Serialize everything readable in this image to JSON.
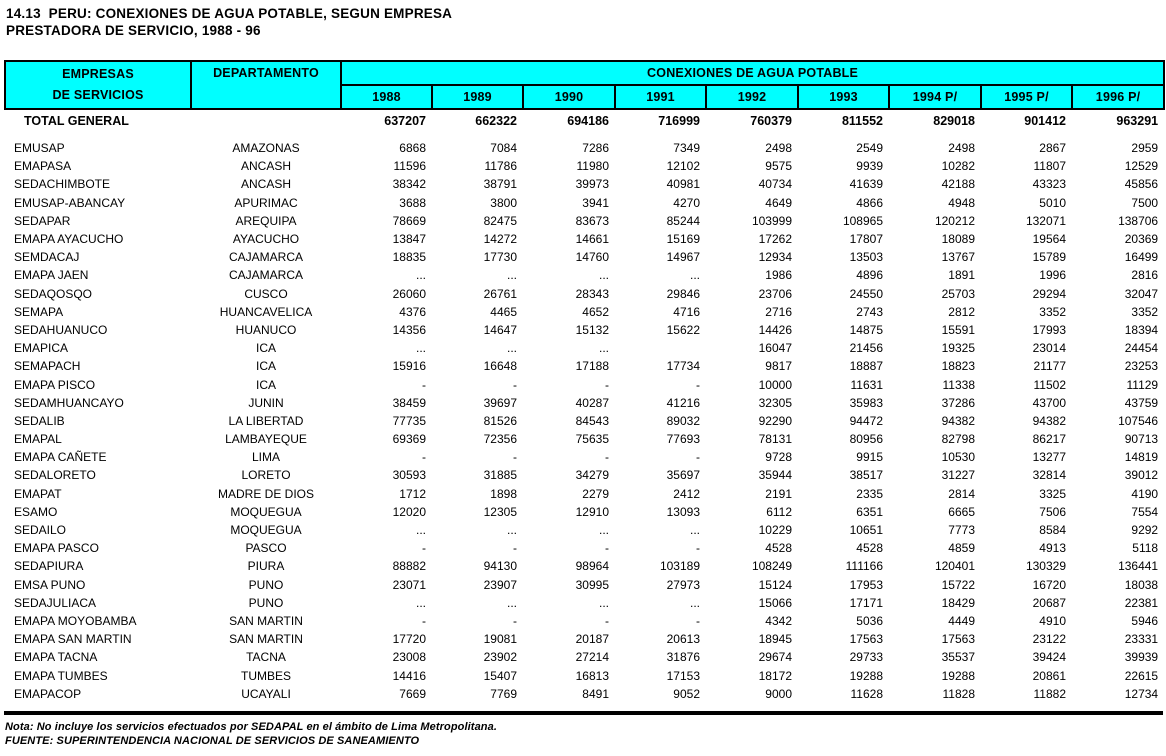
{
  "title": {
    "line1": "14.13  PERU: CONEXIONES DE AGUA POTABLE, SEGUN EMPRESA",
    "line2": "PRESTADORA DE SERVICIO, 1988 - 96"
  },
  "colors": {
    "header_bg": "#00FFFF",
    "border": "#000000",
    "text": "#000000",
    "page_bg": "#FFFFFF"
  },
  "table": {
    "header": {
      "col1_line1": "EMPRESAS",
      "col1_line2": "DE SERVICIOS",
      "col2": "DEPARTAMENTO",
      "group": "CONEXIONES DE AGUA POTABLE",
      "years": [
        "1988",
        "1989",
        "1990",
        "1991",
        "1992",
        "1993",
        "1994 P/",
        "1995 P/",
        "1996 P/"
      ]
    },
    "total": {
      "label": "TOTAL GENERAL",
      "values": [
        "637207",
        "662322",
        "694186",
        "716999",
        "760379",
        "811552",
        "829018",
        "901412",
        "963291"
      ]
    },
    "rows": [
      {
        "company": "EMUSAP",
        "department": "AMAZONAS",
        "values": [
          "6868",
          "7084",
          "7286",
          "7349",
          "2498",
          "2549",
          "2498",
          "2867",
          "2959"
        ]
      },
      {
        "company": "EMAPASA",
        "department": "ANCASH",
        "values": [
          "11596",
          "11786",
          "11980",
          "12102",
          "9575",
          "9939",
          "10282",
          "11807",
          "12529"
        ]
      },
      {
        "company": "SEDACHIMBOTE",
        "department": "ANCASH",
        "values": [
          "38342",
          "38791",
          "39973",
          "40981",
          "40734",
          "41639",
          "42188",
          "43323",
          "45856"
        ]
      },
      {
        "company": "EMUSAP-ABANCAY",
        "department": "APURIMAC",
        "values": [
          "3688",
          "3800",
          "3941",
          "4270",
          "4649",
          "4866",
          "4948",
          "5010",
          "7500"
        ]
      },
      {
        "company": "SEDAPAR",
        "department": "AREQUIPA",
        "values": [
          "78669",
          "82475",
          "83673",
          "85244",
          "103999",
          "108965",
          "120212",
          "132071",
          "138706"
        ]
      },
      {
        "company": "EMAPA AYACUCHO",
        "department": "AYACUCHO",
        "values": [
          "13847",
          "14272",
          "14661",
          "15169",
          "17262",
          "17807",
          "18089",
          "19564",
          "20369"
        ]
      },
      {
        "company": "SEMDACAJ",
        "department": "CAJAMARCA",
        "values": [
          "18835",
          "17730",
          "14760",
          "14967",
          "12934",
          "13503",
          "13767",
          "15789",
          "16499"
        ]
      },
      {
        "company": "EMAPA JAEN",
        "department": "CAJAMARCA",
        "values": [
          "...",
          "...",
          "...",
          "...",
          "1986",
          "4896",
          "1891",
          "1996",
          "2816"
        ]
      },
      {
        "company": "SEDAQOSQO",
        "department": "CUSCO",
        "values": [
          "26060",
          "26761",
          "28343",
          "29846",
          "23706",
          "24550",
          "25703",
          "29294",
          "32047"
        ]
      },
      {
        "company": "SEMAPA",
        "department": "HUANCAVELICA",
        "values": [
          "4376",
          "4465",
          "4652",
          "4716",
          "2716",
          "2743",
          "2812",
          "3352",
          "3352"
        ]
      },
      {
        "company": "SEDAHUANUCO",
        "department": "HUANUCO",
        "values": [
          "14356",
          "14647",
          "15132",
          "15622",
          "14426",
          "14875",
          "15591",
          "17993",
          "18394"
        ]
      },
      {
        "company": "EMAPICA",
        "department": "ICA",
        "values": [
          "...",
          "...",
          "...",
          "",
          "16047",
          "21456",
          "19325",
          "23014",
          "24454"
        ]
      },
      {
        "company": "SEMAPACH",
        "department": "ICA",
        "values": [
          "15916",
          "16648",
          "17188",
          "17734",
          "9817",
          "18887",
          "18823",
          "21177",
          "23253"
        ]
      },
      {
        "company": "EMAPA PISCO",
        "department": "ICA",
        "values": [
          "-",
          "-",
          "-",
          "-",
          "10000",
          "11631",
          "11338",
          "11502",
          "11129"
        ]
      },
      {
        "company": "SEDAMHUANCAYO",
        "department": "JUNIN",
        "values": [
          "38459",
          "39697",
          "40287",
          "41216",
          "32305",
          "35983",
          "37286",
          "43700",
          "43759"
        ]
      },
      {
        "company": "SEDALIB",
        "department": "LA LIBERTAD",
        "values": [
          "77735",
          "81526",
          "84543",
          "89032",
          "92290",
          "94472",
          "94382",
          "94382",
          "107546"
        ]
      },
      {
        "company": "EMAPAL",
        "department": "LAMBAYEQUE",
        "values": [
          "69369",
          "72356",
          "75635",
          "77693",
          "78131",
          "80956",
          "82798",
          "86217",
          "90713"
        ]
      },
      {
        "company": "EMAPA CAÑETE",
        "department": "LIMA",
        "values": [
          "-",
          "-",
          "-",
          "-",
          "9728",
          "9915",
          "10530",
          "13277",
          "14819"
        ]
      },
      {
        "company": "SEDALORETO",
        "department": "LORETO",
        "values": [
          "30593",
          "31885",
          "34279",
          "35697",
          "35944",
          "38517",
          "31227",
          "32814",
          "39012"
        ]
      },
      {
        "company": "EMAPAT",
        "department": "MADRE DE DIOS",
        "values": [
          "1712",
          "1898",
          "2279",
          "2412",
          "2191",
          "2335",
          "2814",
          "3325",
          "4190"
        ]
      },
      {
        "company": "ESAMO",
        "department": "MOQUEGUA",
        "values": [
          "12020",
          "12305",
          "12910",
          "13093",
          "6112",
          "6351",
          "6665",
          "7506",
          "7554"
        ]
      },
      {
        "company": "SEDAILO",
        "department": "MOQUEGUA",
        "values": [
          "...",
          "...",
          "...",
          "...",
          "10229",
          "10651",
          "7773",
          "8584",
          "9292"
        ]
      },
      {
        "company": "EMAPA PASCO",
        "department": "PASCO",
        "values": [
          "-",
          "-",
          "-",
          "-",
          "4528",
          "4528",
          "4859",
          "4913",
          "5118"
        ]
      },
      {
        "company": "SEDAPIURA",
        "department": "PIURA",
        "values": [
          "88882",
          "94130",
          "98964",
          "103189",
          "108249",
          "111166",
          "120401",
          "130329",
          "136441"
        ]
      },
      {
        "company": "EMSA PUNO",
        "department": "PUNO",
        "values": [
          "23071",
          "23907",
          "30995",
          "27973",
          "15124",
          "17953",
          "15722",
          "16720",
          "18038"
        ]
      },
      {
        "company": "SEDAJULIACA",
        "department": "PUNO",
        "values": [
          "...",
          "...",
          "...",
          "...",
          "15066",
          "17171",
          "18429",
          "20687",
          "22381"
        ]
      },
      {
        "company": "EMAPA MOYOBAMBA",
        "department": "SAN MARTIN",
        "values": [
          "-",
          "-",
          "-",
          "-",
          "4342",
          "5036",
          "4449",
          "4910",
          "5946"
        ]
      },
      {
        "company": "EMAPA SAN MARTIN",
        "department": "SAN MARTIN",
        "values": [
          "17720",
          "19081",
          "20187",
          "20613",
          "18945",
          "17563",
          "17563",
          "23122",
          "23331"
        ]
      },
      {
        "company": "EMAPA TACNA",
        "department": "TACNA",
        "values": [
          "23008",
          "23902",
          "27214",
          "31876",
          "29674",
          "29733",
          "35537",
          "39424",
          "39939"
        ]
      },
      {
        "company": "EMAPA TUMBES",
        "department": "TUMBES",
        "values": [
          "14416",
          "15407",
          "16813",
          "17153",
          "18172",
          "19288",
          "19288",
          "20861",
          "22615"
        ]
      },
      {
        "company": "EMAPACOP",
        "department": "UCAYALI",
        "values": [
          "7669",
          "7769",
          "8491",
          "9052",
          "9000",
          "11628",
          "11828",
          "11882",
          "12734"
        ]
      }
    ]
  },
  "notes": {
    "nota": "Nota: No incluye los servicios efectuados por SEDAPAL en el ámbito de Lima Metropolitana.",
    "fuente": "FUENTE: SUPERINTENDENCIA NACIONAL DE SERVICIOS DE SANEAMIENTO"
  }
}
